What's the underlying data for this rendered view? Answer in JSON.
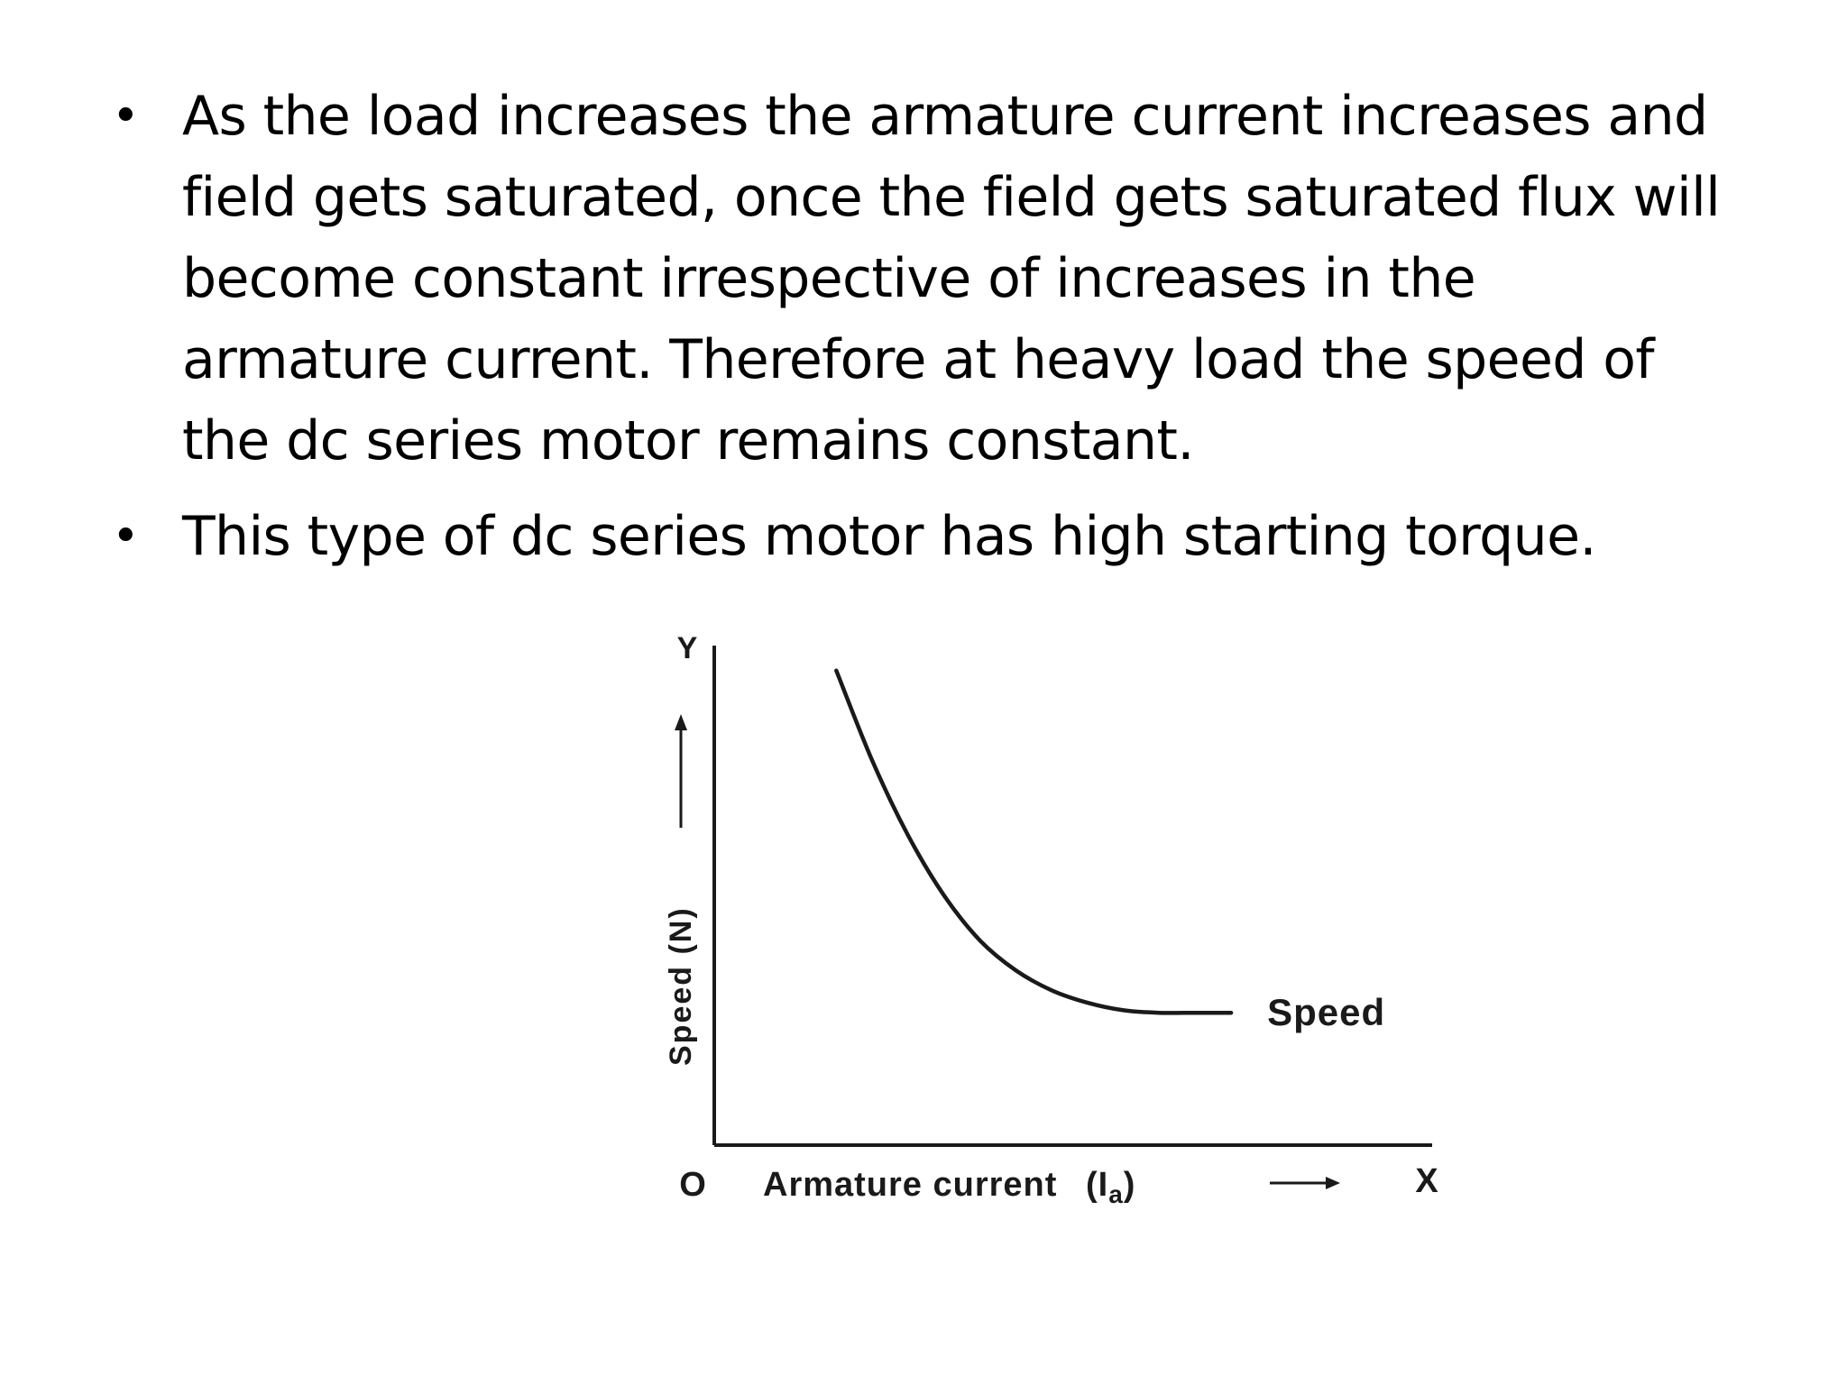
{
  "slide": {
    "bullets": [
      {
        "lines": [
          "As the load increases the armature current increases and",
          "field gets saturated, once the field gets saturated flux will",
          "become constant irrespective of increases in the",
          "armature current. Therefore at heavy load the speed of",
          "the dc series motor remains constant."
        ]
      },
      {
        "lines": [
          "This type of dc series motor has high starting torque."
        ]
      }
    ],
    "bullet_symbol": "•"
  },
  "chart_data": {
    "type": "line",
    "title": "",
    "origin_label": "O",
    "x_axis_letter": "X",
    "y_axis_letter": "Y",
    "xlabel": "Armature current",
    "xlabel_symbol": "I",
    "xlabel_subscript": "a",
    "ylabel": "Speed (N)",
    "series": [
      {
        "name": "Speed",
        "x": [
          0.17,
          0.22,
          0.27,
          0.32,
          0.37,
          0.42,
          0.47,
          0.52,
          0.57,
          0.62,
          0.67,
          0.72
        ],
        "y": [
          0.95,
          0.77,
          0.62,
          0.5,
          0.41,
          0.35,
          0.31,
          0.285,
          0.27,
          0.265,
          0.265,
          0.265
        ]
      }
    ],
    "xlim": [
      0,
      1
    ],
    "ylim": [
      0,
      1
    ],
    "ticks": "none",
    "grid": false,
    "colors": {
      "ink": "#1a1a1a"
    }
  }
}
